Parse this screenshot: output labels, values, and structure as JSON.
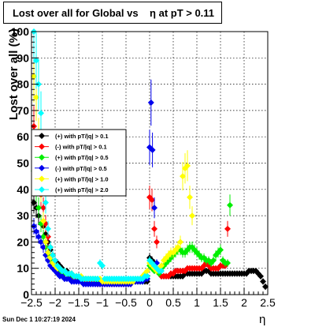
{
  "title": "Lost over all for Global vs    η at pT > 0.11",
  "timestamp": "Sun Dec  1 10:27:19 2024",
  "chart_data": {
    "type": "scatter",
    "title": "Lost over all for Global vs    η at pT > 0.11",
    "xlabel": "η",
    "ylabel": "Lost over all (%)",
    "xlim": [
      -2.5,
      2.5
    ],
    "ylim": [
      0,
      100
    ],
    "xticks": [
      "−2.5",
      "−2",
      "−1.5",
      "−1",
      "−0.5",
      "0",
      "0.5",
      "1",
      "1.5",
      "2",
      "2.5"
    ],
    "yticks": [
      "0",
      "10",
      "20",
      "30",
      "40",
      "50",
      "60",
      "70",
      "80",
      "90",
      "100"
    ],
    "grid": true,
    "legend_position": "upper-left",
    "series": [
      {
        "name": "(+) with pT/|q| > 0.1",
        "color": "#000000",
        "x": [
          -2.45,
          -2.4,
          -2.35,
          -2.3,
          -2.25,
          -2.2,
          -2.15,
          -2.1,
          -2.05,
          -2.0,
          -1.95,
          -1.9,
          -1.85,
          -1.8,
          -1.75,
          -1.7,
          -1.65,
          -1.6,
          -1.55,
          -1.5,
          -1.45,
          -1.4,
          -1.35,
          -1.3,
          -1.25,
          -1.2,
          -1.15,
          -1.1,
          -1.05,
          -1.0,
          -0.95,
          -0.9,
          -0.85,
          -0.8,
          -0.75,
          -0.7,
          -0.65,
          -0.6,
          -0.55,
          -0.5,
          -0.45,
          -0.4,
          -0.35,
          -0.3,
          -0.25,
          -0.2,
          -0.15,
          -0.1,
          -0.05,
          0.0,
          0.05,
          0.1,
          0.15,
          0.2,
          0.25,
          0.3,
          0.35,
          0.4,
          0.45,
          0.5,
          0.55,
          0.6,
          0.65,
          0.7,
          0.75,
          0.8,
          0.85,
          0.9,
          0.95,
          1.0,
          1.05,
          1.1,
          1.15,
          1.2,
          1.25,
          1.3,
          1.35,
          1.4,
          1.45,
          1.5,
          1.55,
          1.6,
          1.65,
          1.7,
          1.75,
          1.8,
          1.85,
          1.9,
          1.95,
          2.0,
          2.05,
          2.1,
          2.15,
          2.2,
          2.25,
          2.3,
          2.35,
          2.4,
          2.45
        ],
        "y": [
          35,
          33,
          30,
          27,
          26,
          23,
          20,
          17,
          15,
          13,
          12,
          11,
          10,
          9,
          9,
          8,
          8,
          7,
          7,
          6,
          6,
          6,
          6,
          5,
          5,
          5,
          5,
          5,
          5,
          5,
          5,
          5,
          5,
          5,
          5,
          5,
          5,
          5,
          5,
          5,
          5,
          5,
          5,
          5,
          5,
          5,
          5,
          5,
          5,
          14,
          13,
          12,
          10,
          8,
          7,
          7,
          7,
          7,
          7,
          7,
          7,
          7,
          7,
          7,
          8,
          8,
          8,
          8,
          8,
          8,
          8,
          8,
          9,
          9,
          9,
          8,
          8,
          8,
          8,
          8,
          8,
          8,
          8,
          8,
          8,
          8,
          8,
          8,
          8,
          8,
          8,
          9,
          9,
          9,
          9,
          8,
          7,
          5,
          3
        ]
      },
      {
        "name": "(-) with pT/|q| > 0.1",
        "color": "#ff0000",
        "x": [
          -2.45,
          -2.4,
          -2.35,
          -2.3,
          -2.25,
          -2.2,
          -2.15,
          -2.1,
          -2.05,
          -2.0,
          -1.95,
          -1.9,
          -1.85,
          -1.8,
          -1.75,
          -1.7,
          -1.65,
          -1.6,
          -1.55,
          -1.5,
          -1.45,
          -1.4,
          -1.35,
          -1.3,
          -1.25,
          -1.2,
          -1.15,
          -1.1,
          -1.05,
          -1.0,
          -0.95,
          -0.9,
          -0.85,
          -0.8,
          -0.75,
          -0.7,
          -0.65,
          -0.6,
          -0.55,
          -0.5,
          -0.45,
          -0.4,
          -0.35,
          -0.3,
          -0.25,
          -0.2,
          -0.15,
          -0.1,
          -0.05,
          0.0,
          0.05,
          0.1,
          0.15,
          0.2,
          0.25,
          0.3,
          0.35,
          0.4,
          0.45,
          0.5,
          0.55,
          0.6,
          0.65,
          0.7,
          0.75,
          0.8,
          0.85,
          0.9,
          0.95,
          1.0,
          1.05,
          1.1,
          1.15,
          1.2,
          1.25,
          1.3,
          1.35,
          1.4,
          1.45,
          1.5,
          1.55,
          1.6,
          1.65
        ],
        "y": [
          64,
          55,
          45,
          38,
          33,
          27,
          22,
          18,
          15,
          13,
          11,
          10,
          9,
          8,
          8,
          7,
          7,
          6,
          6,
          6,
          5,
          5,
          5,
          5,
          5,
          5,
          5,
          4,
          4,
          4,
          4,
          4,
          4,
          4,
          4,
          4,
          4,
          4,
          4,
          4,
          4,
          4,
          5,
          5,
          5,
          5,
          6,
          7,
          7,
          37,
          36,
          25,
          20,
          8,
          7,
          7,
          7,
          7,
          8,
          8,
          9,
          9,
          9,
          9,
          9,
          10,
          10,
          10,
          10,
          10,
          10,
          10,
          11,
          12,
          11,
          10,
          10,
          10,
          10,
          11,
          11,
          11,
          25
        ]
      },
      {
        "name": "(+) with pT/|q| > 0.5",
        "color": "#00ee00",
        "x": [
          -2.45,
          -2.4,
          -2.35,
          -2.3,
          -2.25,
          -2.2,
          -2.15,
          -2.1,
          -2.05,
          -2.0,
          -1.95,
          -1.9,
          -1.85,
          -1.8,
          -1.75,
          -1.7,
          -1.65,
          -1.6,
          -1.55,
          -1.5,
          -1.45,
          -1.4,
          -1.35,
          -1.3,
          -1.25,
          -1.2,
          -1.15,
          -1.1,
          -1.05,
          -1.0,
          -0.95,
          -0.9,
          -0.85,
          -0.8,
          -0.75,
          -0.7,
          -0.65,
          -0.6,
          -0.55,
          -0.5,
          -0.45,
          -0.4,
          -0.35,
          -0.3,
          -0.25,
          -0.2,
          -0.15,
          -0.1,
          -0.05,
          0.0,
          0.05,
          0.1,
          0.15,
          0.2,
          0.25,
          0.3,
          0.35,
          0.4,
          0.45,
          0.5,
          0.55,
          0.6,
          0.65,
          0.7,
          0.75,
          0.8,
          0.85,
          0.9,
          0.95,
          1.0,
          1.05,
          1.1,
          1.15,
          1.2,
          1.25,
          1.3,
          1.35,
          1.4,
          1.45,
          1.5,
          1.55,
          1.6,
          1.65,
          1.7
        ],
        "y": [
          47,
          40,
          33,
          27,
          22,
          18,
          15,
          13,
          12,
          11,
          10,
          9,
          8,
          8,
          8,
          7,
          7,
          7,
          7,
          6,
          6,
          6,
          6,
          6,
          6,
          6,
          6,
          5,
          5,
          5,
          5,
          5,
          5,
          5,
          5,
          5,
          5,
          5,
          5,
          5,
          5,
          5,
          5,
          5,
          5,
          5,
          5,
          6,
          7,
          11,
          10,
          9,
          9,
          8,
          10,
          11,
          12,
          13,
          14,
          15,
          16,
          17,
          17,
          16,
          16,
          17,
          18,
          18,
          17,
          16,
          15,
          14,
          14,
          13,
          13,
          12,
          13,
          15,
          16,
          17,
          13,
          12,
          12,
          34
        ]
      },
      {
        "name": "(-) with pT/|q| > 0.5",
        "color": "#0000ee",
        "x": [
          -2.45,
          -2.4,
          -2.35,
          -2.3,
          -2.25,
          -2.2,
          -2.15,
          -2.1,
          -2.05,
          -2.0,
          -1.95,
          -1.9,
          -1.85,
          -1.8,
          -1.75,
          -1.7,
          -1.65,
          -1.6,
          -1.55,
          -1.5,
          -1.45,
          -1.4,
          -1.35,
          -1.3,
          -1.25,
          -1.2,
          -1.15,
          -1.1,
          -1.05,
          -1.0,
          -0.95,
          -0.9,
          -0.85,
          -0.8,
          -0.75,
          -0.7,
          -0.65,
          -0.6,
          -0.55,
          -0.5,
          -0.45,
          -0.4,
          -0.35,
          -0.3,
          -0.25,
          -0.2,
          -0.15,
          -0.1,
          -0.05,
          0.0,
          0.03,
          0.06,
          0.1,
          0.15
        ],
        "y": [
          26,
          24,
          22,
          20,
          18,
          15,
          13,
          11,
          10,
          9,
          8,
          7,
          7,
          6,
          6,
          6,
          5,
          5,
          5,
          5,
          5,
          4,
          4,
          4,
          4,
          4,
          4,
          4,
          4,
          4,
          4,
          4,
          4,
          4,
          4,
          4,
          4,
          4,
          4,
          4,
          4,
          4,
          5,
          5,
          5,
          5,
          5,
          6,
          6,
          56,
          73,
          55,
          33,
          12
        ]
      },
      {
        "name": "(+) with pT/|q| > 1.0",
        "color": "#ffff00",
        "x": [
          -2.45,
          -2.4,
          -2.35,
          -2.3,
          -2.25,
          -2.2,
          -2.15,
          -2.1,
          -2.05,
          -2.0,
          -1.95,
          -1.9,
          -1.85,
          -1.8,
          -1.75,
          -1.7,
          -1.65,
          -1.6,
          -1.55,
          -1.5,
          -1.45,
          -1.4,
          -1.35,
          -1.3,
          -1.25,
          -1.2,
          -1.15,
          -1.1,
          -1.05,
          -1.0,
          -0.95,
          -0.9,
          -0.85,
          -0.8,
          -0.75,
          -0.7,
          -0.65,
          -0.6,
          -0.55,
          -0.5,
          -0.45,
          -0.4,
          -0.35,
          -0.3,
          -0.25,
          -0.2,
          -0.15,
          -0.1,
          -0.05,
          0.0,
          0.05,
          0.1,
          0.15,
          0.2,
          0.25,
          0.3,
          0.35,
          0.4,
          0.45,
          0.5,
          0.55,
          0.6,
          0.65,
          0.7,
          0.75,
          0.8,
          0.85,
          0.9
        ],
        "y": [
          83,
          75,
          60,
          40,
          28,
          20,
          16,
          14,
          12,
          11,
          10,
          10,
          9,
          9,
          8,
          8,
          8,
          7,
          7,
          7,
          7,
          6,
          6,
          6,
          6,
          6,
          6,
          6,
          6,
          5,
          5,
          5,
          5,
          5,
          5,
          5,
          5,
          5,
          5,
          5,
          5,
          5,
          5,
          6,
          6,
          6,
          7,
          8,
          9,
          12,
          11,
          10,
          9,
          10,
          11,
          13,
          14,
          15,
          16,
          16,
          17,
          18,
          20,
          45,
          48,
          49,
          37,
          30
        ]
      },
      {
        "name": "(+) with pT/|q| > 2.0",
        "color": "#00ffff",
        "x": [
          -2.45,
          -2.4,
          -2.35,
          -2.3,
          -2.25,
          -2.2,
          -2.15,
          -2.1,
          -2.05,
          -2.0,
          -1.95,
          -1.9,
          -1.85,
          -1.8,
          -1.75,
          -1.7,
          -1.65,
          -1.6,
          -1.55,
          -1.5,
          -1.45,
          -1.4,
          -1.35,
          -1.3,
          -1.25,
          -1.2,
          -1.15,
          -1.1,
          -1.05,
          -1.0,
          -0.95,
          -0.9,
          -0.85,
          -0.8,
          -0.75,
          -0.7,
          -0.65,
          -0.6,
          -0.55,
          -0.5,
          -0.45,
          -0.4,
          -0.35,
          -0.3,
          -0.25,
          -0.2,
          -0.15,
          -0.1,
          -0.05,
          0.0,
          0.05,
          0.1,
          0.15,
          0.2,
          0.25
        ],
        "y": [
          100,
          89,
          80,
          69,
          50,
          35,
          25,
          18,
          15,
          13,
          11,
          10,
          9,
          9,
          8,
          8,
          8,
          7,
          7,
          7,
          6,
          6,
          6,
          6,
          6,
          6,
          6,
          6,
          12,
          11,
          6,
          6,
          6,
          6,
          6,
          6,
          6,
          6,
          6,
          6,
          6,
          6,
          6,
          6,
          6,
          6,
          6,
          7,
          7,
          13,
          12,
          11,
          10,
          9,
          9
        ]
      }
    ]
  }
}
